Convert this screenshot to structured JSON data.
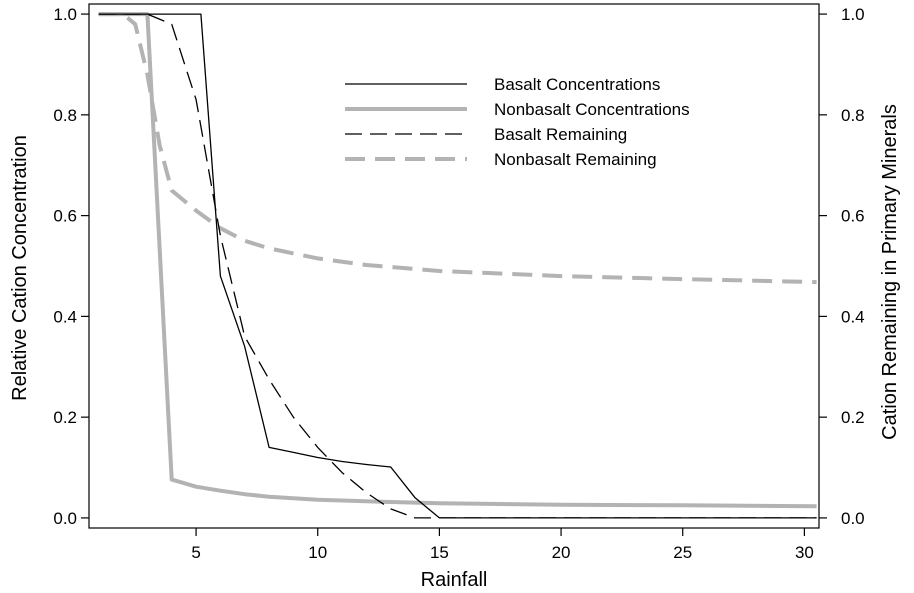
{
  "chart_data": {
    "type": "line",
    "xlabel": "Rainfall",
    "ylabel_left": "Relative Cation Concentration",
    "ylabel_right": "Cation Remaining in Primary Minerals",
    "xlim": [
      0.6,
      30.6
    ],
    "ylim_left": [
      -0.02,
      1.02
    ],
    "ylim_right": [
      -0.02,
      1.02
    ],
    "x_ticks": [
      5,
      10,
      15,
      20,
      25,
      30
    ],
    "y_ticks_left": [
      0.0,
      0.2,
      0.4,
      0.6,
      0.8,
      1.0
    ],
    "y_ticks_right": [
      0.0,
      0.2,
      0.4,
      0.6,
      0.8,
      1.0
    ],
    "x_tick_labels": [
      "5",
      "10",
      "15",
      "20",
      "25",
      "30"
    ],
    "y_tick_labels_left": [
      "0.0",
      "0.2",
      "0.4",
      "0.6",
      "0.8",
      "1.0"
    ],
    "y_tick_labels_right": [
      "0.0",
      "0.2",
      "0.4",
      "0.6",
      "0.8",
      "1.0"
    ],
    "grid": false,
    "legend_position": "top-right",
    "series": [
      {
        "name": "Basalt Concentrations",
        "axis": "left",
        "color": "#000000",
        "style": "solid",
        "x": [
          1,
          2,
          3,
          4,
          5,
          5.2,
          6,
          7,
          8,
          9,
          10,
          11,
          12,
          13,
          14,
          15,
          16,
          20,
          25,
          30.5
        ],
        "y": [
          1.0,
          1.0,
          1.0,
          1.0,
          1.0,
          1.0,
          0.48,
          0.34,
          0.14,
          0.13,
          0.12,
          0.112,
          0.106,
          0.101,
          0.04,
          0.0,
          0.0,
          0.0,
          0.0,
          0.0
        ]
      },
      {
        "name": "Nonbasalt Concentrations",
        "axis": "left",
        "color": "#b3b3b3",
        "style": "solid",
        "x": [
          1,
          2,
          3,
          4,
          5,
          6,
          7,
          8,
          10,
          12,
          15,
          20,
          25,
          30.5
        ],
        "y": [
          1.0,
          1.0,
          1.0,
          0.076,
          0.062,
          0.054,
          0.047,
          0.042,
          0.036,
          0.033,
          0.029,
          0.026,
          0.025,
          0.023
        ]
      },
      {
        "name": "Basalt Remaining",
        "axis": "right",
        "color": "#000000",
        "style": "dashed",
        "x": [
          1,
          2,
          3,
          4,
          5,
          6,
          7,
          8,
          9,
          10,
          11,
          12,
          13,
          14,
          15,
          20,
          25,
          30.5
        ],
        "y": [
          1.0,
          1.0,
          1.0,
          0.98,
          0.83,
          0.56,
          0.36,
          0.275,
          0.2,
          0.14,
          0.09,
          0.05,
          0.018,
          0.0,
          0.0,
          0.0,
          0.0,
          0.0
        ]
      },
      {
        "name": "Nonbasalt Remaining",
        "axis": "right",
        "color": "#b3b3b3",
        "style": "dashed",
        "x": [
          1,
          2,
          2.5,
          3,
          3.5,
          4,
          5,
          6,
          7,
          8,
          10,
          12,
          15,
          20,
          25,
          30.5
        ],
        "y": [
          1.0,
          1.0,
          0.98,
          0.88,
          0.74,
          0.65,
          0.61,
          0.575,
          0.55,
          0.535,
          0.515,
          0.502,
          0.49,
          0.48,
          0.474,
          0.468
        ]
      }
    ]
  }
}
